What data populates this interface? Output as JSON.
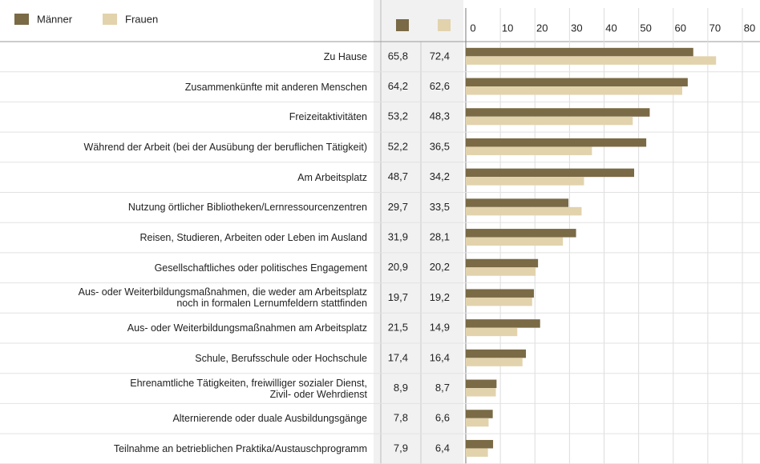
{
  "chart_data": {
    "type": "barh",
    "categories": [
      "Zu Hause",
      "Zusammenkünfte mit anderen Menschen",
      "Freizeitaktivitäten",
      "Während der Arbeit (bei der Ausübung der beruflichen Tätigkeit)",
      "Am Arbeitsplatz",
      "Nutzung örtlicher Bibliotheken/Lernressourcenzentren",
      "Reisen, Studieren, Arbeiten oder Leben im Ausland",
      "Gesellschaftliches oder politisches Engagement",
      "Aus- oder Weiterbildungsmaßnahmen, die weder am Arbeitsplatz\nnoch in formalen Lernumfeldern stattfinden",
      "Aus- oder Weiterbildungsmaßnahmen am Arbeitsplatz",
      "Schule, Berufsschule oder Hochschule",
      "Ehrenamtliche Tätigkeiten, freiwilliger sozialer Dienst,\nZivil- oder Wehrdienst",
      "Alternierende oder duale Ausbildungsgänge",
      "Teilnahme an betrieblichen Praktika/Austauschprogramm"
    ],
    "series": [
      {
        "name": "Männer",
        "color": "#7a6a45",
        "values": [
          65.8,
          64.2,
          53.2,
          52.2,
          48.7,
          29.7,
          31.9,
          20.9,
          19.7,
          21.5,
          17.4,
          8.9,
          7.8,
          7.9
        ],
        "value_labels": [
          "65,8",
          "64,2",
          "53,2",
          "52,2",
          "48,7",
          "29,7",
          "31,9",
          "20,9",
          "19,7",
          "21,5",
          "17,4",
          "8,9",
          "7,8",
          "7,9"
        ]
      },
      {
        "name": "Frauen",
        "color": "#e2d3ad",
        "values": [
          72.4,
          62.6,
          48.3,
          36.5,
          34.2,
          33.5,
          28.1,
          20.2,
          19.2,
          14.9,
          16.4,
          8.7,
          6.6,
          6.4
        ],
        "value_labels": [
          "72,4",
          "62,6",
          "48,3",
          "36,5",
          "34,2",
          "33,5",
          "28,1",
          "20,2",
          "19,2",
          "14,9",
          "16,4",
          "8,7",
          "6,6",
          "6,4"
        ]
      }
    ],
    "xlim": [
      0,
      80
    ],
    "xticks": [
      0,
      10,
      20,
      30,
      40,
      50,
      60,
      70,
      80
    ],
    "grid": true
  }
}
